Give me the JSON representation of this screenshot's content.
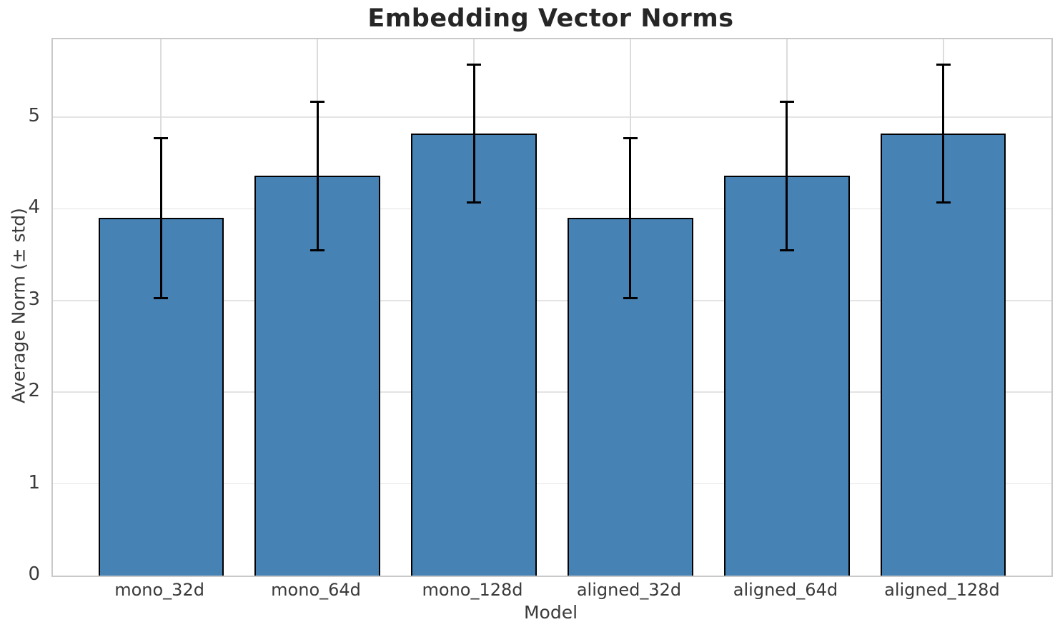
{
  "chart_data": {
    "type": "bar",
    "title": "Embedding Vector Norms",
    "xlabel": "Model",
    "ylabel": "Average Norm (± std)",
    "categories": [
      "mono_32d",
      "mono_64d",
      "mono_128d",
      "aligned_32d",
      "aligned_64d",
      "aligned_128d"
    ],
    "values": [
      3.9,
      4.36,
      4.82,
      3.9,
      4.36,
      4.82
    ],
    "errors": [
      0.87,
      0.81,
      0.75,
      0.87,
      0.81,
      0.75
    ],
    "y_ticks": [
      0,
      1,
      2,
      3,
      4,
      5
    ],
    "ylim": [
      0,
      5.85
    ],
    "xlim": [
      -0.69,
      5.69
    ],
    "bar_width_units": 0.8,
    "grid": true,
    "legend": "none",
    "bar_color": "#4682B4",
    "bar_edge_color": "#000000",
    "error_color": "#000000",
    "grid_color": "#e4e4e4",
    "spine_color": "#c9c9c9",
    "text_color": "#3a3a3a",
    "title_color": "#262626",
    "background_color": "#ffffff"
  }
}
